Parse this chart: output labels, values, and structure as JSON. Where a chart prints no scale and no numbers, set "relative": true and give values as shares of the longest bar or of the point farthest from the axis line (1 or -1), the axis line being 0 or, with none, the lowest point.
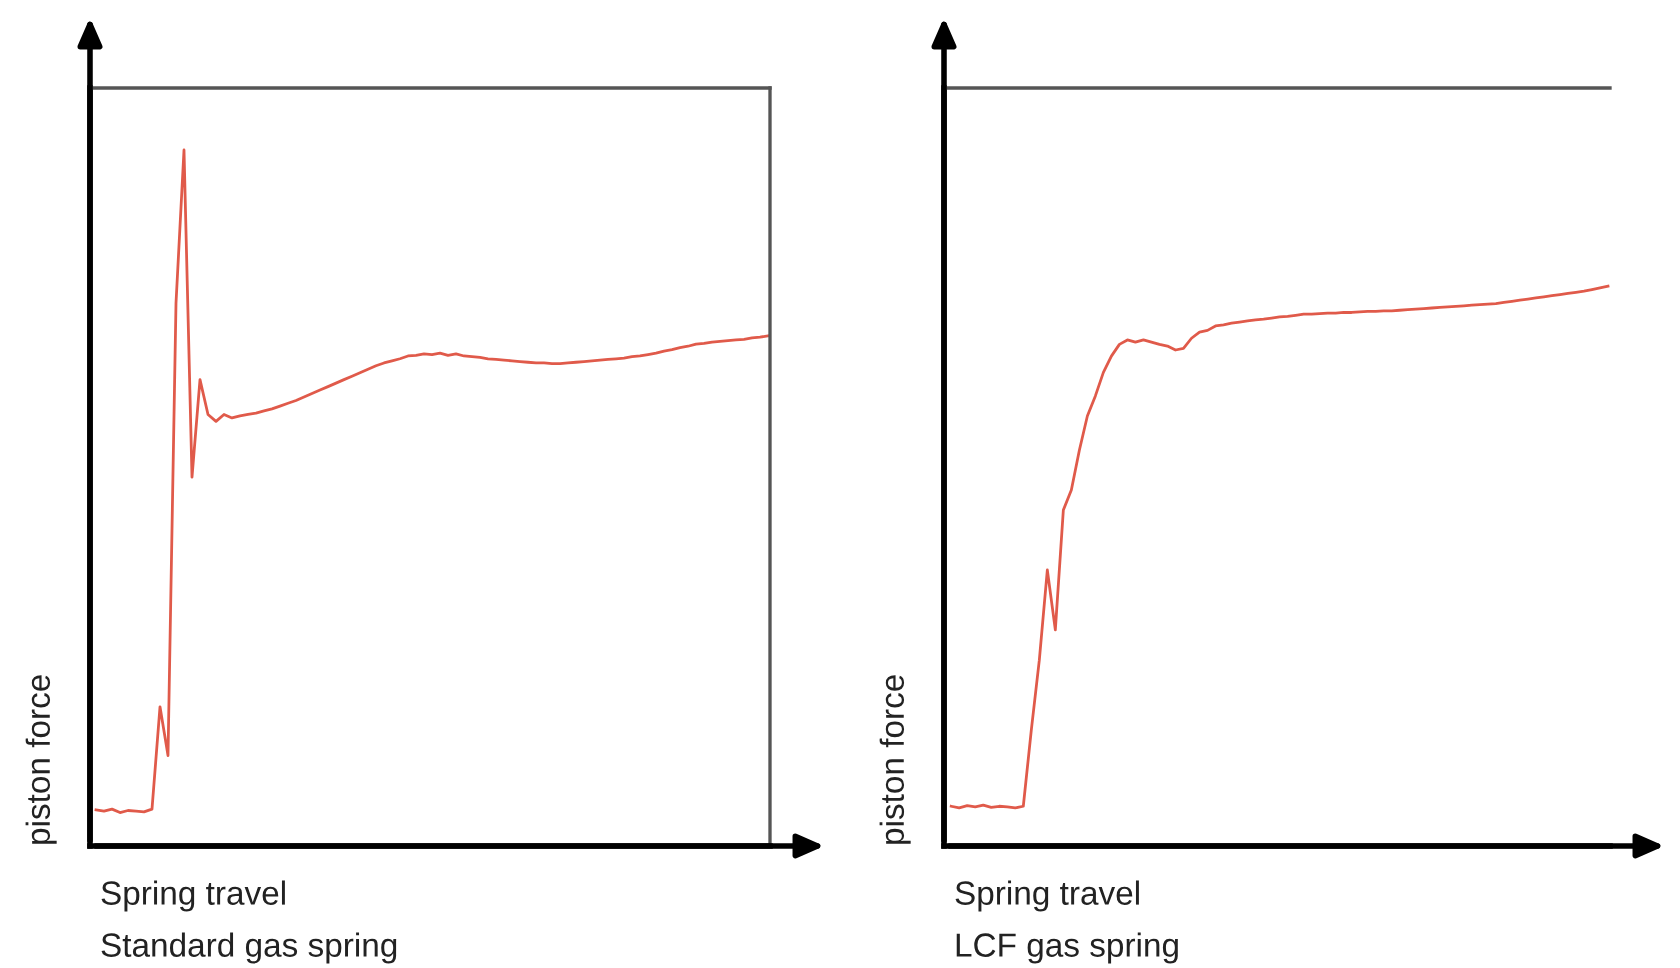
{
  "chart_data": [
    {
      "type": "line",
      "title": "Standard gas spring",
      "xlabel": "Spring travel",
      "ylabel": "piston force",
      "relative": true,
      "legend": false,
      "grid": false,
      "categories": [
        null,
        null,
        null,
        null,
        null,
        null,
        null,
        null,
        null,
        null,
        null,
        null,
        null,
        null,
        null,
        null,
        null,
        null,
        null,
        null,
        null,
        null,
        null,
        null,
        null,
        null,
        null,
        null,
        null,
        null,
        null,
        null,
        null,
        null,
        null,
        null,
        null,
        null,
        null,
        null,
        null,
        null,
        null,
        null,
        null,
        null,
        null,
        null,
        null,
        null,
        null,
        null,
        null,
        null,
        null,
        null,
        null,
        null,
        null,
        null,
        null,
        null,
        null,
        null,
        null,
        null,
        null,
        null,
        null,
        null,
        null,
        null,
        null,
        null,
        null,
        null,
        null,
        null,
        null,
        null,
        null,
        null,
        null,
        null,
        null
      ],
      "series": [
        {
          "color": "#e05a4a",
          "values": [
            0.052,
            0.05,
            0.053,
            0.048,
            0.051,
            0.05,
            0.049,
            0.053,
            0.2,
            0.13,
            0.78,
            1.0,
            0.53,
            0.67,
            0.62,
            0.61,
            0.62,
            0.615,
            0.618,
            0.62,
            0.622,
            0.625,
            0.628,
            0.632,
            0.636,
            0.64,
            0.645,
            0.65,
            0.655,
            0.66,
            0.665,
            0.67,
            0.675,
            0.68,
            0.685,
            0.69,
            0.694,
            0.697,
            0.7,
            0.704,
            0.705,
            0.707,
            0.706,
            0.708,
            0.705,
            0.707,
            0.704,
            0.703,
            0.702,
            0.7,
            0.699,
            0.698,
            0.697,
            0.696,
            0.695,
            0.694,
            0.694,
            0.693,
            0.693,
            0.694,
            0.695,
            0.696,
            0.697,
            0.698,
            0.699,
            0.7,
            0.701,
            0.703,
            0.704,
            0.706,
            0.708,
            0.711,
            0.713,
            0.716,
            0.718,
            0.721,
            0.722,
            0.724,
            0.725,
            0.726,
            0.727,
            0.728,
            0.73,
            0.731,
            0.733
          ]
        }
      ]
    },
    {
      "type": "line",
      "title": "LCF gas spring",
      "xlabel": "Spring travel",
      "ylabel": "piston force",
      "relative": true,
      "legend": false,
      "grid": false,
      "categories": [
        null,
        null,
        null,
        null,
        null,
        null,
        null,
        null,
        null,
        null,
        null,
        null,
        null,
        null,
        null,
        null,
        null,
        null,
        null,
        null,
        null,
        null,
        null,
        null,
        null,
        null,
        null,
        null,
        null,
        null,
        null,
        null,
        null,
        null,
        null,
        null,
        null,
        null,
        null,
        null,
        null,
        null,
        null,
        null,
        null,
        null,
        null,
        null,
        null,
        null,
        null,
        null,
        null,
        null,
        null,
        null,
        null,
        null,
        null,
        null,
        null,
        null,
        null,
        null,
        null,
        null,
        null,
        null,
        null,
        null,
        null,
        null,
        null,
        null,
        null,
        null,
        null,
        null,
        null,
        null,
        null,
        null,
        null
      ],
      "series": [
        {
          "color": "#e05a4a",
          "values": [
            0.071,
            0.068,
            0.072,
            0.07,
            0.073,
            0.069,
            0.071,
            0.07,
            0.068,
            0.071,
            0.207,
            0.332,
            0.493,
            0.386,
            0.6,
            0.636,
            0.707,
            0.768,
            0.804,
            0.846,
            0.875,
            0.896,
            0.904,
            0.9,
            0.904,
            0.9,
            0.896,
            0.893,
            0.886,
            0.889,
            0.907,
            0.918,
            0.921,
            0.929,
            0.931,
            0.934,
            0.936,
            0.938,
            0.94,
            0.941,
            0.943,
            0.945,
            0.946,
            0.948,
            0.95,
            0.95,
            0.951,
            0.952,
            0.952,
            0.953,
            0.953,
            0.954,
            0.955,
            0.955,
            0.956,
            0.956,
            0.957,
            0.958,
            0.959,
            0.96,
            0.961,
            0.962,
            0.963,
            0.964,
            0.965,
            0.966,
            0.967,
            0.968,
            0.969,
            0.971,
            0.973,
            0.975,
            0.977,
            0.979,
            0.981,
            0.983,
            0.985,
            0.987,
            0.989,
            0.991,
            0.994,
            0.997,
            1.0
          ]
        }
      ]
    }
  ]
}
